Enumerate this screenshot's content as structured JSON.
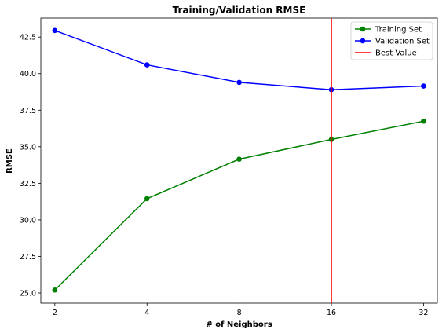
{
  "chart_data": {
    "type": "line",
    "title": "Training/Validation RMSE",
    "xlabel": "# of Neighbors",
    "ylabel": "RMSE",
    "x": [
      2,
      4,
      8,
      16,
      32
    ],
    "x_tick_labels": [
      "2",
      "4",
      "8",
      "16",
      "32"
    ],
    "x_scale": "log2",
    "xlim": [
      1.8,
      35.5
    ],
    "ylim": [
      24.3,
      43.8
    ],
    "y_ticks": [
      25.0,
      27.5,
      30.0,
      32.5,
      35.0,
      37.5,
      40.0,
      42.5
    ],
    "y_tick_labels": [
      "25.0",
      "27.5",
      "30.0",
      "32.5",
      "35.0",
      "37.5",
      "40.0",
      "42.5"
    ],
    "grid": false,
    "legend_position": "top-right",
    "series": [
      {
        "name": "Training Set",
        "color": "#008000",
        "marker": "circle",
        "values": [
          25.2,
          31.45,
          34.15,
          35.5,
          36.75
        ]
      },
      {
        "name": "Validation Set",
        "color": "#0000ff",
        "marker": "circle",
        "values": [
          42.95,
          40.6,
          39.4,
          38.9,
          39.15
        ]
      }
    ],
    "reference_lines": [
      {
        "name": "Best Value",
        "orientation": "vertical",
        "x": 16,
        "color": "#ff0000"
      }
    ]
  }
}
